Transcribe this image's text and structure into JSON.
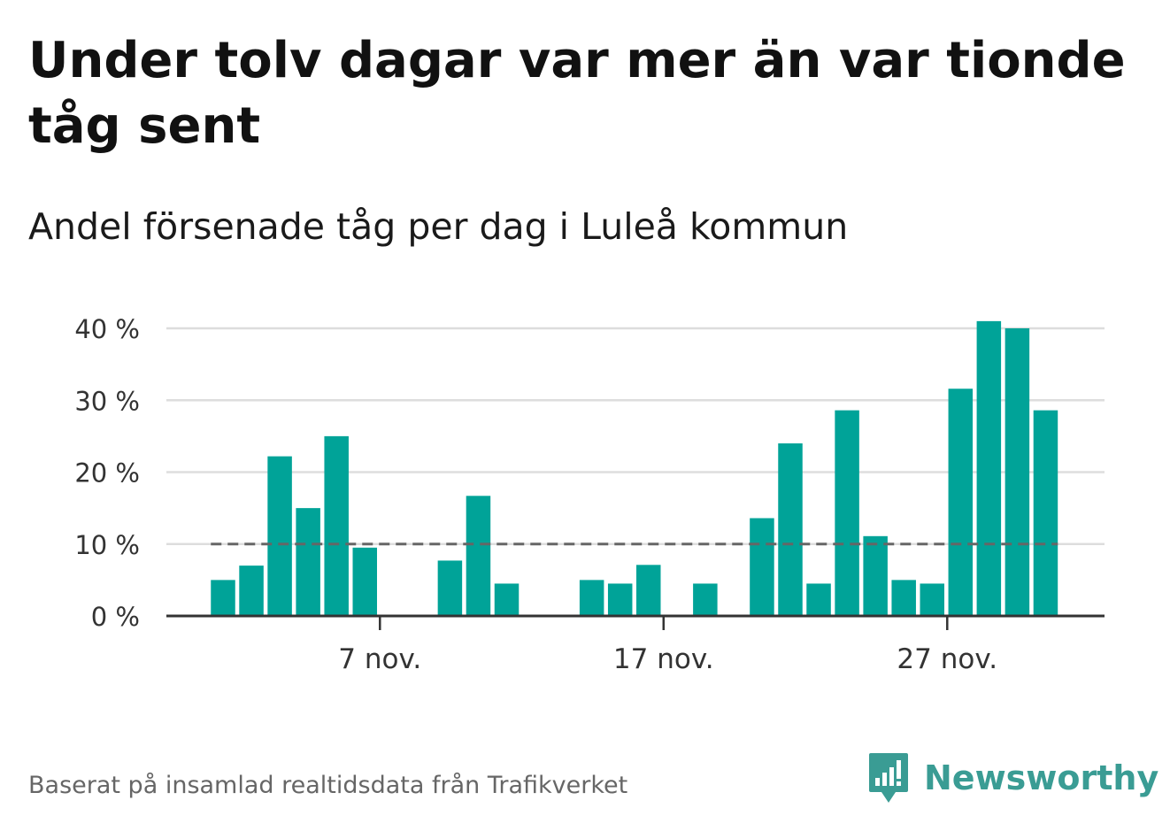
{
  "title": "Under tolv dagar var mer än var tionde tåg sent",
  "subtitle": "Andel försenade tåg per dag i Luleå kommun",
  "source": "Baserat på insamlad realtidsdata från Trafikverket",
  "brand": {
    "name": "Newsworthy",
    "icon": "newsworthy-logo-icon",
    "color": "#3a9c94"
  },
  "colors": {
    "bar": "#00a398",
    "grid": "#dddddd",
    "axis": "#333333",
    "reference_line": "#666666"
  },
  "chart_data": {
    "type": "bar",
    "title": "Under tolv dagar var mer än var tionde tåg sent",
    "subtitle": "Andel försenade tåg per dag i Luleå kommun",
    "x": [
      1,
      2,
      3,
      4,
      5,
      6,
      7,
      8,
      9,
      10,
      11,
      12,
      13,
      14,
      15,
      16,
      17,
      18,
      19,
      20,
      21,
      22,
      23,
      24,
      25,
      26,
      27,
      28,
      29,
      30
    ],
    "values": [
      5,
      7,
      22.2,
      15,
      25,
      9.5,
      0,
      0,
      7.7,
      16.7,
      4.5,
      0,
      0,
      5,
      4.5,
      7.1,
      0,
      4.5,
      0,
      13.6,
      24,
      4.5,
      28.6,
      11.1,
      5,
      4.5,
      31.6,
      41,
      40,
      28.6
    ],
    "ylim": [
      0,
      40
    ],
    "yticks": [
      0,
      10,
      20,
      30,
      40
    ],
    "ytick_labels": [
      "0 %",
      "10 %",
      "20 %",
      "30 %",
      "40 %"
    ],
    "xticks": [
      7,
      17,
      27
    ],
    "xtick_labels": [
      "7 nov.",
      "17 nov.",
      "27 nov."
    ],
    "reference_line": {
      "value": 10,
      "style": "dashed"
    },
    "grid": true,
    "legend": "none"
  }
}
